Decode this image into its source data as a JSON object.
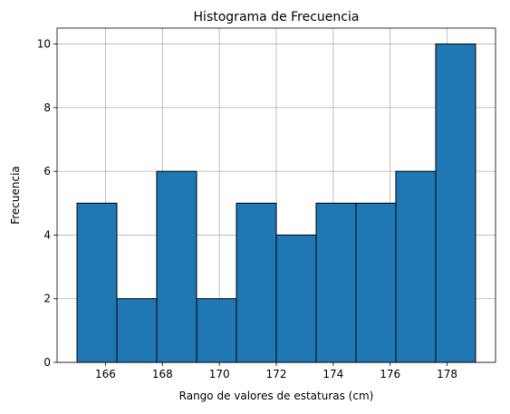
{
  "chart_data": {
    "type": "bar",
    "subtype": "histogram",
    "title": "Histograma de Frecuencia",
    "xlabel": "Rango de valores de estaturas (cm)",
    "ylabel": "Frecuencia",
    "bin_edges": [
      165.0,
      166.4,
      167.8,
      169.2,
      170.6,
      172.0,
      173.4,
      174.8,
      176.2,
      177.6,
      179.0
    ],
    "values": [
      5,
      2,
      6,
      2,
      5,
      4,
      5,
      5,
      6,
      10
    ],
    "xlim": [
      164.3,
      179.7
    ],
    "ylim": [
      0,
      10.5
    ],
    "xticks": [
      166,
      168,
      170,
      172,
      174,
      176,
      178
    ],
    "xtick_labels": [
      "166",
      "168",
      "170",
      "172",
      "174",
      "176",
      "178"
    ],
    "yticks": [
      0,
      2,
      4,
      6,
      8,
      10
    ],
    "ytick_labels": [
      "0",
      "2",
      "4",
      "6",
      "8",
      "10"
    ],
    "grid": true,
    "legend": "none",
    "colors": {
      "bar_fill": "#1f77b4",
      "bar_edge": "#000000",
      "grid": "#b0b0b0"
    }
  }
}
